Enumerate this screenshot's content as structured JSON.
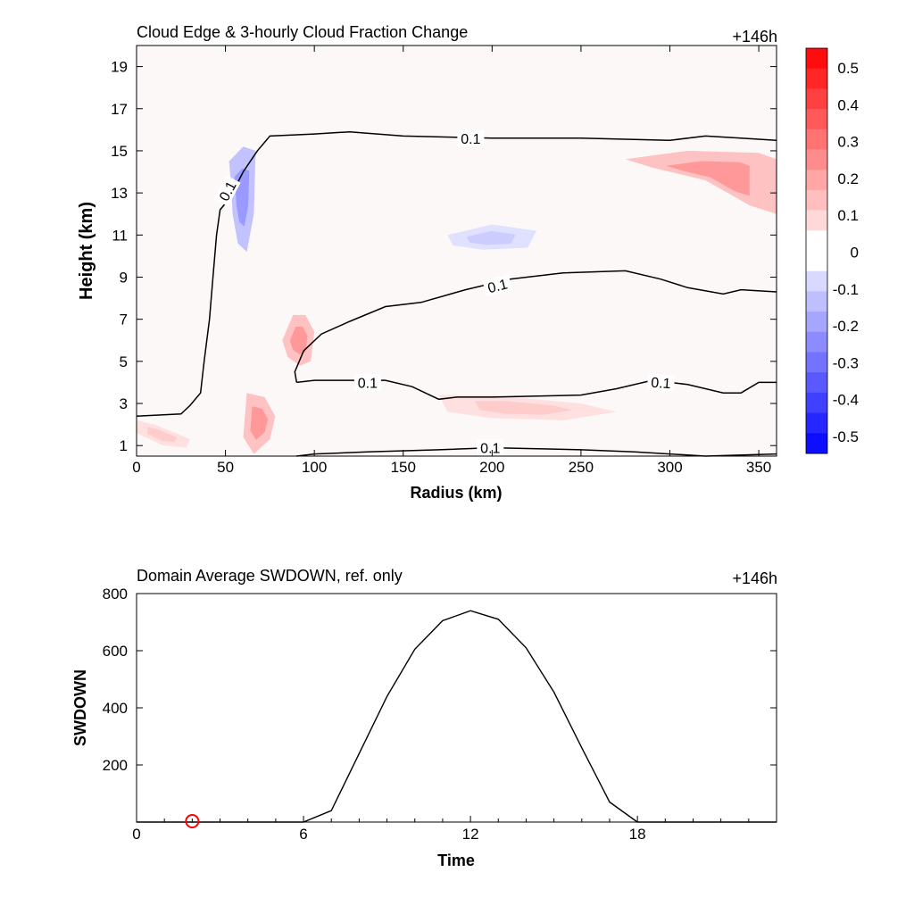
{
  "chart_data": [
    {
      "type": "contour",
      "title": "Cloud Edge & 3-hourly Cloud Fraction Change",
      "time_label": "+146h",
      "xlabel": "Radius (km)",
      "ylabel": "Height (km)",
      "xlim": [
        0,
        360
      ],
      "ylim": [
        0.5,
        20
      ],
      "xticks": [
        0,
        50,
        100,
        150,
        200,
        250,
        300,
        350
      ],
      "yticks": [
        1,
        3,
        5,
        7,
        9,
        11,
        13,
        15,
        17,
        19
      ],
      "contour_level": 0.1,
      "contour_labels": [
        "0.1",
        "0.1",
        "0.1",
        "0.1",
        "0.1",
        "0.1"
      ],
      "colorbar": {
        "min": -0.5,
        "max": 0.5,
        "ticks": [
          "0.5",
          "0.4",
          "0.3",
          "0.2",
          "0.1",
          "0",
          "-0.1",
          "-0.2",
          "-0.3",
          "-0.4",
          "-0.5"
        ],
        "positive_color": "#ff0000",
        "negative_color": "#0000ff"
      },
      "contours": [
        {
          "name": "upper-cloud-edge",
          "points": [
            [
              0,
              2.4
            ],
            [
              25,
              2.5
            ],
            [
              30,
              2.9
            ],
            [
              36,
              3.5
            ],
            [
              38,
              5
            ],
            [
              41,
              7
            ],
            [
              43,
              9
            ],
            [
              45,
              11
            ],
            [
              47,
              12.2
            ],
            [
              52,
              12.7
            ],
            [
              60,
              14
            ],
            [
              68,
              15
            ],
            [
              75,
              15.7
            ],
            [
              100,
              15.8
            ],
            [
              120,
              15.9
            ],
            [
              150,
              15.7
            ],
            [
              200,
              15.6
            ],
            [
              250,
              15.6
            ],
            [
              300,
              15.5
            ],
            [
              320,
              15.7
            ],
            [
              340,
              15.6
            ],
            [
              360,
              15.5
            ]
          ]
        },
        {
          "name": "mid-cloud-edge",
          "points": [
            [
              90,
              4.0
            ],
            [
              100,
              4.1
            ],
            [
              115,
              4.1
            ],
            [
              140,
              4.1
            ],
            [
              155,
              3.8
            ],
            [
              170,
              3.2
            ],
            [
              180,
              3.3
            ],
            [
              200,
              3.3
            ],
            [
              250,
              3.4
            ],
            [
              270,
              3.7
            ],
            [
              290,
              4.1
            ],
            [
              310,
              3.9
            ],
            [
              330,
              3.5
            ],
            [
              340,
              3.5
            ],
            [
              350,
              4.0
            ],
            [
              360,
              4.0
            ]
          ]
        },
        {
          "name": "upper-layer-edge",
          "points": [
            [
              90,
              4.0
            ],
            [
              89,
              4.5
            ],
            [
              94,
              5.5
            ],
            [
              104,
              6.3
            ],
            [
              120,
              6.9
            ],
            [
              140,
              7.6
            ],
            [
              160,
              7.8
            ],
            [
              185,
              8.4
            ],
            [
              210,
              8.9
            ],
            [
              240,
              9.2
            ],
            [
              275,
              9.3
            ],
            [
              295,
              8.9
            ],
            [
              310,
              8.5
            ],
            [
              330,
              8.2
            ],
            [
              340,
              8.4
            ],
            [
              360,
              8.3
            ]
          ]
        },
        {
          "name": "low-cloud-edge",
          "points": [
            [
              90,
              0.5
            ],
            [
              100,
              0.6
            ],
            [
              130,
              0.7
            ],
            [
              170,
              0.8
            ],
            [
              200,
              0.9
            ],
            [
              250,
              0.8
            ],
            [
              280,
              0.7
            ],
            [
              300,
              0.6
            ],
            [
              320,
              0.5
            ],
            [
              360,
              0.6
            ]
          ]
        }
      ],
      "shaded_regions": [
        {
          "name": "pos-near-surface",
          "value": 0.1,
          "points": [
            [
              0,
              2.2
            ],
            [
              10,
              2.0
            ],
            [
              22,
              1.6
            ],
            [
              30,
              1.3
            ],
            [
              28,
              0.9
            ],
            [
              15,
              1.0
            ],
            [
              5,
              1.4
            ],
            [
              0,
              1.6
            ]
          ]
        },
        {
          "name": "pos-lower-core",
          "value": 0.2,
          "points": [
            [
              62,
              3.5
            ],
            [
              72,
              3.3
            ],
            [
              78,
              2.4
            ],
            [
              75,
              1.3
            ],
            [
              66,
              0.6
            ],
            [
              60,
              1.4
            ]
          ]
        },
        {
          "name": "pos-midlevel",
          "value": 0.2,
          "points": [
            [
              82,
              6.0
            ],
            [
              88,
              7.2
            ],
            [
              95,
              7.2
            ],
            [
              100,
              6.4
            ],
            [
              98,
              5.0
            ],
            [
              92,
              4.8
            ],
            [
              85,
              5.2
            ]
          ]
        },
        {
          "name": "pos-upper-right",
          "value": 0.2,
          "points": [
            [
              275,
              14.6
            ],
            [
              310,
              15.0
            ],
            [
              350,
              14.9
            ],
            [
              360,
              14.6
            ],
            [
              360,
              12.0
            ],
            [
              345,
              12.4
            ],
            [
              320,
              13.6
            ],
            [
              290,
              14.2
            ]
          ]
        },
        {
          "name": "pos-low-right",
          "value": 0.1,
          "points": [
            [
              170,
              3.4
            ],
            [
              200,
              3.4
            ],
            [
              250,
              3.0
            ],
            [
              270,
              2.6
            ],
            [
              240,
              2.2
            ],
            [
              200,
              2.3
            ],
            [
              175,
              2.6
            ]
          ]
        },
        {
          "name": "neg-tower",
          "value": -0.2,
          "points": [
            [
              52,
              14.5
            ],
            [
              60,
              15.2
            ],
            [
              67,
              15.0
            ],
            [
              66,
              12.0
            ],
            [
              62,
              10.2
            ],
            [
              57,
              10.6
            ],
            [
              54,
              12.0
            ],
            [
              53,
              13.6
            ]
          ]
        },
        {
          "name": "neg-midlevel",
          "value": -0.1,
          "points": [
            [
              175,
              11.0
            ],
            [
              200,
              11.5
            ],
            [
              225,
              11.2
            ],
            [
              220,
              10.4
            ],
            [
              195,
              10.3
            ],
            [
              178,
              10.5
            ]
          ]
        }
      ]
    },
    {
      "type": "line",
      "title": "Domain Average SWDOWN, ref. only",
      "time_label": "+146h",
      "xlabel": "Time",
      "ylabel": "SWDOWN",
      "xlim": [
        0,
        23
      ],
      "ylim": [
        0,
        800
      ],
      "xticks": [
        0,
        6,
        12,
        18
      ],
      "yticks": [
        200,
        400,
        600,
        800
      ],
      "x": [
        0,
        1,
        2,
        3,
        4,
        5,
        6,
        7,
        8,
        9,
        10,
        11,
        12,
        13,
        14,
        15,
        16,
        17,
        18,
        19,
        20,
        21,
        22,
        23
      ],
      "series": [
        {
          "name": "SWDOWN",
          "values": [
            0,
            0,
            0,
            0,
            0,
            0,
            0,
            40,
            240,
            440,
            605,
            705,
            740,
            710,
            610,
            455,
            260,
            70,
            0,
            0,
            0,
            0,
            0,
            0
          ],
          "color": "#000000"
        }
      ],
      "marker": {
        "x": 2,
        "y": 0,
        "color": "#ff0000",
        "shape": "circle"
      }
    }
  ]
}
